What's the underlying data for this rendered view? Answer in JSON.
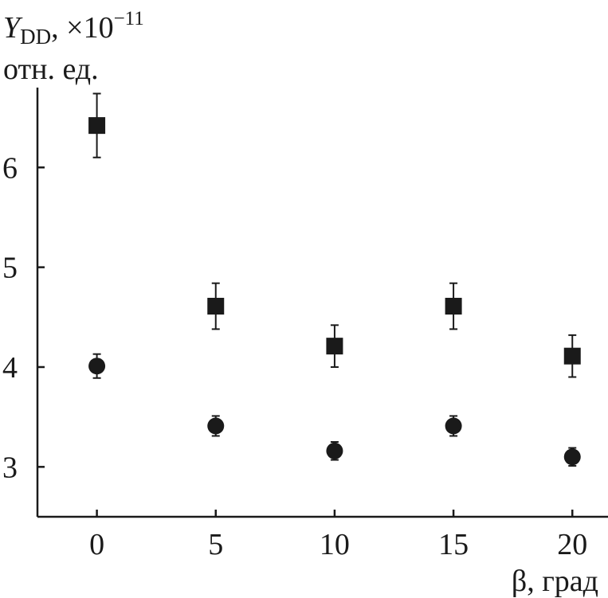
{
  "chart_data": {
    "type": "scatter",
    "title": "",
    "ylabel": {
      "symbol": "Y",
      "subscript": "DD",
      "multiplier": ", ×10",
      "exponent": "−11",
      "units": "отн. ед."
    },
    "xlabel": "β, град",
    "xlim": [
      -2.5,
      21.5
    ],
    "ylim": [
      2.5,
      6.8
    ],
    "x_ticks": [
      0,
      5,
      10,
      15,
      20
    ],
    "y_ticks": [
      3,
      4,
      5,
      6
    ],
    "grid": false,
    "legend": "none",
    "series": [
      {
        "marker": "square",
        "color": "#1a1a1a",
        "points": [
          {
            "x": 0,
            "y": 6.42,
            "err": 0.32
          },
          {
            "x": 5,
            "y": 4.61,
            "err": 0.23
          },
          {
            "x": 10,
            "y": 4.21,
            "err": 0.21
          },
          {
            "x": 15,
            "y": 4.61,
            "err": 0.23
          },
          {
            "x": 20,
            "y": 4.11,
            "err": 0.21
          }
        ]
      },
      {
        "marker": "circle",
        "color": "#1a1a1a",
        "points": [
          {
            "x": 0,
            "y": 4.01,
            "err": 0.12
          },
          {
            "x": 5,
            "y": 3.41,
            "err": 0.1
          },
          {
            "x": 10,
            "y": 3.16,
            "err": 0.09
          },
          {
            "x": 15,
            "y": 3.41,
            "err": 0.1
          },
          {
            "x": 20,
            "y": 3.1,
            "err": 0.09
          }
        ]
      }
    ]
  }
}
